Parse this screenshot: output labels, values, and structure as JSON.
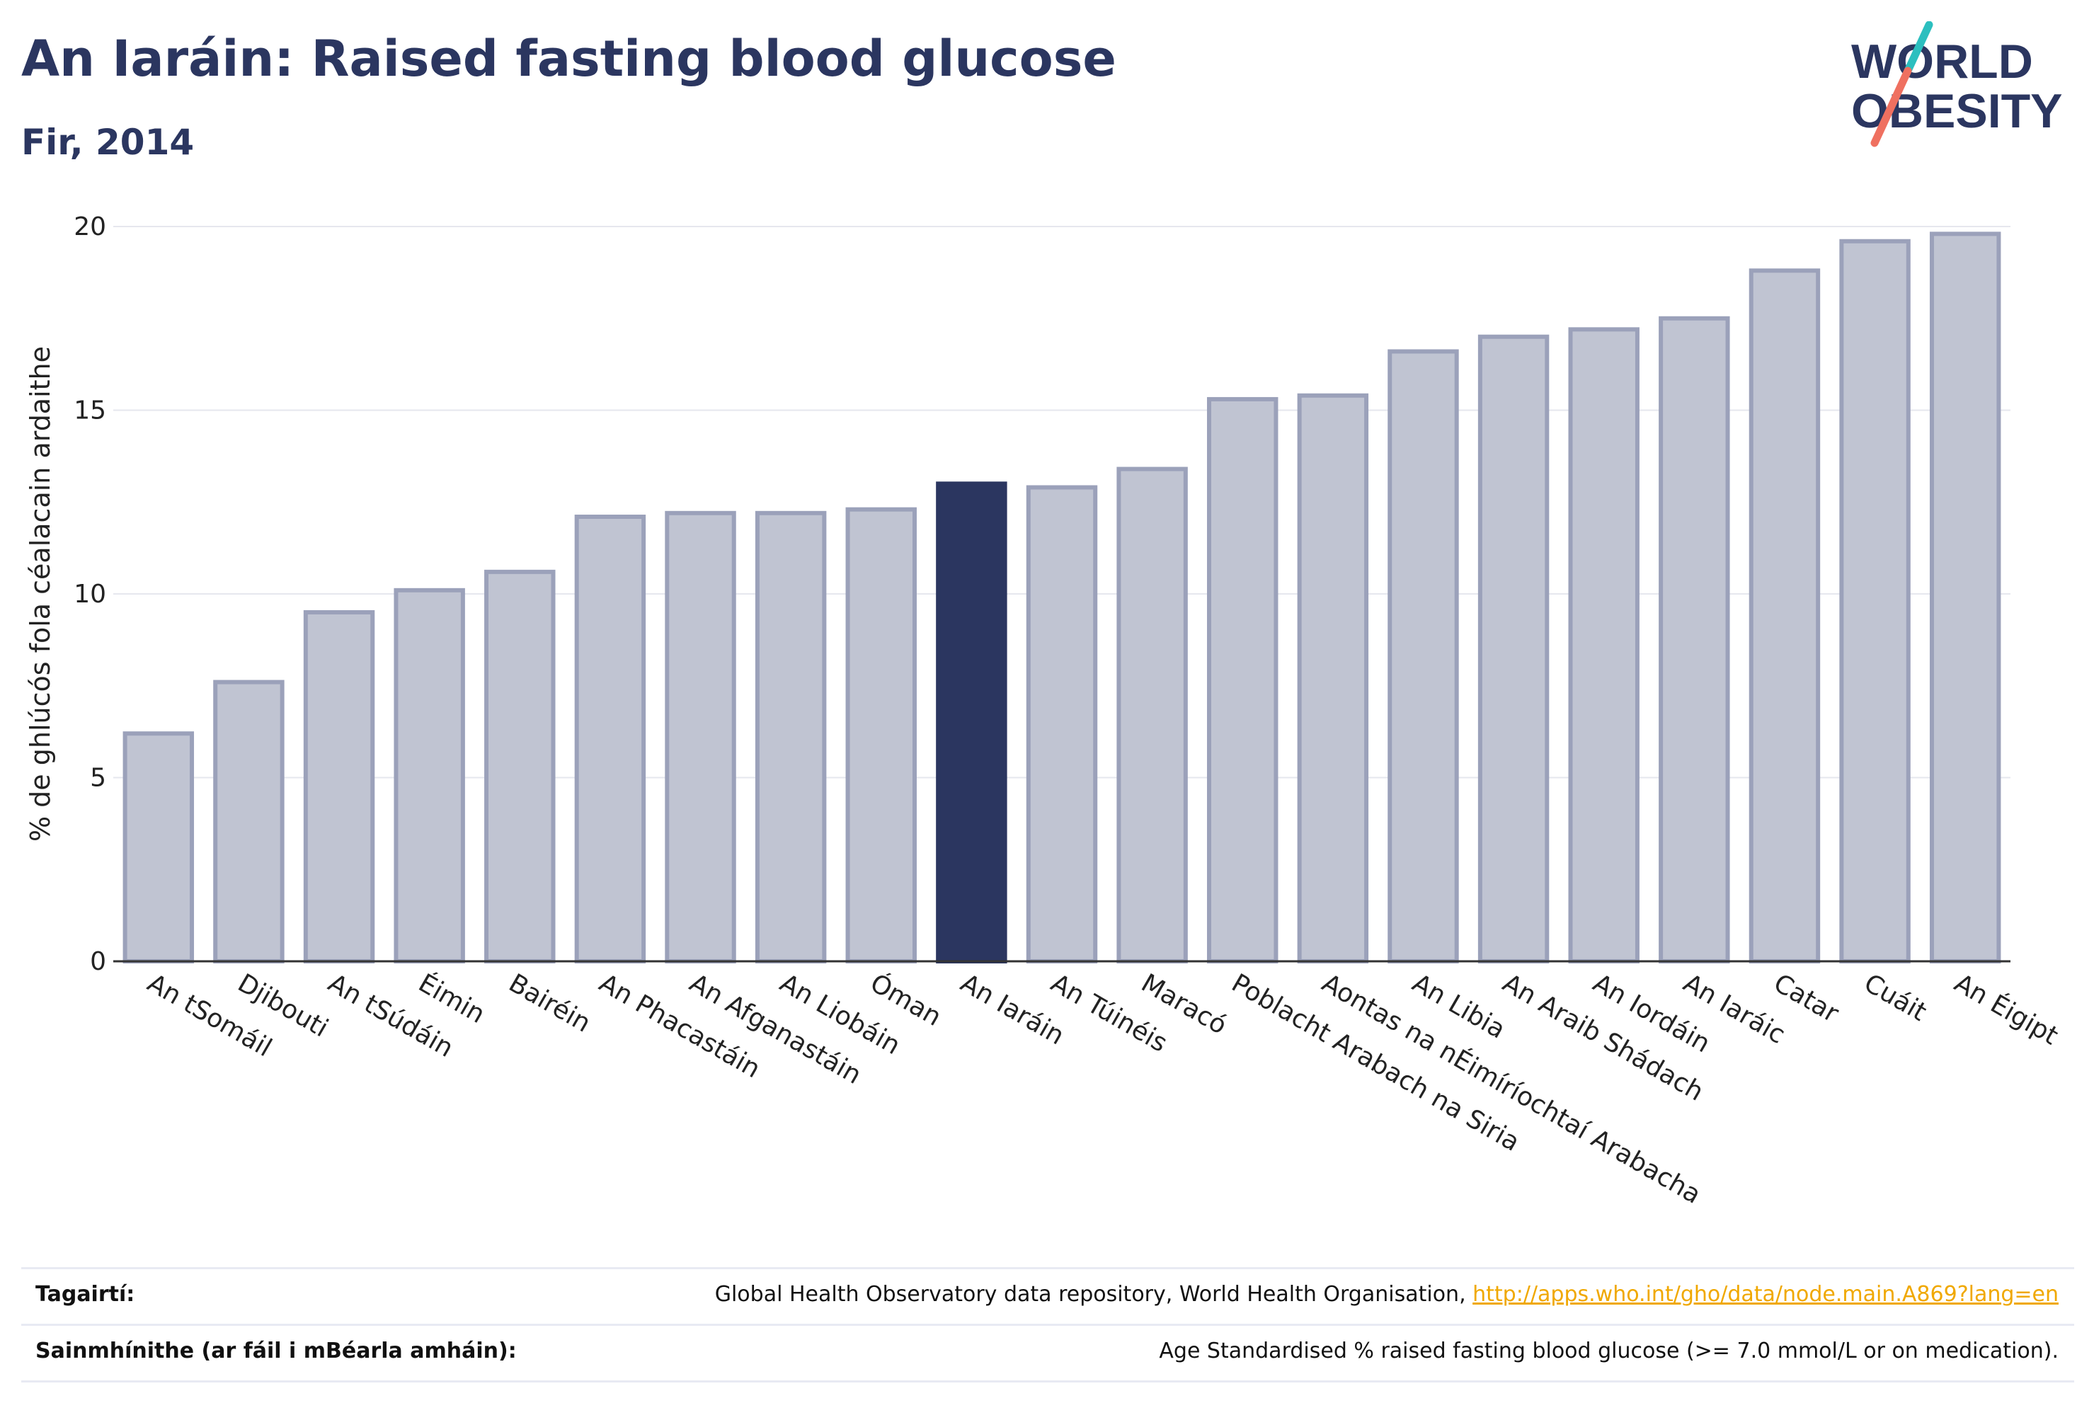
{
  "header": {
    "title": "An Iaráin: Raised fasting blood glucose",
    "subtitle": "Fir, 2014"
  },
  "logo": {
    "line1": "WORLD",
    "line2": "OBESITY"
  },
  "colors": {
    "highlight": "#2b3660",
    "bar_fill": "#c0c4d2",
    "bar_stroke": "#9ba1ba",
    "logo_teal": "#2cbfbf",
    "logo_coral": "#ef7060"
  },
  "chart_data": {
    "type": "bar",
    "ylabel": "% de ghlúcós fola céalacain ardaithe",
    "ylim": [
      0,
      20
    ],
    "yticks": [
      0,
      5,
      10,
      15,
      20
    ],
    "grid": true,
    "highlight_category": "An Iaráin",
    "categories": [
      "An tSomáil",
      "Djibouti",
      "An tSúdáin",
      "Éimin",
      "Bairéin",
      "An Phacastáin",
      "An Afganastáin",
      "An Liobáin",
      "Óman",
      "An Iaráin",
      "An Túinéis",
      "Maracó",
      "Poblacht Arabach na Siria",
      "Aontas na nÉimíríochtaí Arabacha",
      "An Libia",
      "An Araib Shádach",
      "An Iordáin",
      "An Iaráic",
      "Catar",
      "Cuáit",
      "An Éigipt"
    ],
    "values": [
      6.2,
      7.6,
      9.5,
      10.1,
      10.6,
      12.1,
      12.2,
      12.2,
      12.3,
      13.0,
      12.9,
      13.4,
      15.3,
      15.4,
      16.6,
      17.0,
      17.2,
      17.5,
      18.8,
      19.6,
      19.8
    ]
  },
  "footer": {
    "references_label": "Tagairtí:",
    "references_text": "Global Health Observatory data repository, World Health Organisation, ",
    "references_link": "http://apps.who.int/gho/data/node.main.A869?lang=en",
    "definitions_label": "Sainmhínithe (ar fáil i mBéarla amháin):",
    "definitions_text": "Age Standardised % raised fasting blood glucose (>= 7.0 mmol/L or on medication)."
  }
}
